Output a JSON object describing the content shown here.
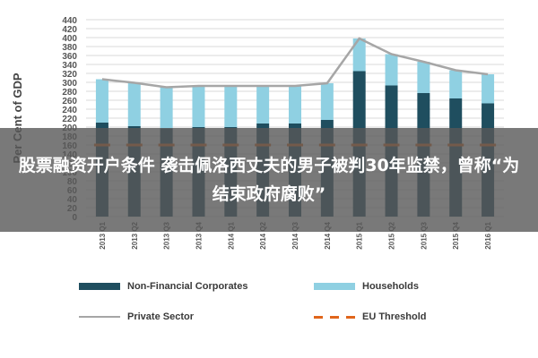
{
  "chart_data": {
    "type": "bar",
    "stacked": true,
    "categories": [
      "2013 Q1",
      "2013 Q2",
      "2013 Q3",
      "2013 Q4",
      "2014 Q1",
      "2014 Q2",
      "2014 Q3",
      "2014 Q4",
      "2015 Q1",
      "2015 Q2",
      "2015 Q3",
      "2015 Q4",
      "2016 Q1"
    ],
    "series": [
      {
        "name": "Non-Financial Corporates",
        "kind": "bar",
        "color": "#1f4e5f",
        "values": [
          210,
          202,
          197,
          200,
          200,
          208,
          208,
          216,
          325,
          293,
          276,
          264,
          253
        ]
      },
      {
        "name": "Households",
        "kind": "bar",
        "color": "#8fd0e2",
        "values": [
          97,
          97,
          92,
          92,
          92,
          84,
          84,
          82,
          73,
          70,
          70,
          63,
          65
        ]
      },
      {
        "name": "Private Sector",
        "kind": "line",
        "color": "#a6a6a6",
        "values": [
          307,
          299,
          289,
          292,
          292,
          292,
          292,
          298,
          398,
          363,
          346,
          327,
          318
        ]
      },
      {
        "name": "EU Threshold",
        "kind": "dashed-line",
        "color": "#e0651b",
        "values": [
          160,
          160,
          160,
          160,
          160,
          160,
          160,
          160,
          160,
          160,
          160,
          160,
          160
        ]
      }
    ],
    "ylabel": "Per Cent of GDP",
    "ylim": [
      0,
      440
    ],
    "yticks": [
      0,
      20,
      40,
      60,
      80,
      100,
      120,
      140,
      160,
      180,
      200,
      220,
      240,
      260,
      280,
      300,
      320,
      340,
      360,
      380,
      400,
      420,
      440
    ],
    "ytick_labels": [
      "0",
      "20",
      "40",
      "60",
      "80",
      "100",
      "120",
      "140",
      "160",
      "180",
      "200",
      "220",
      "240",
      "260",
      "280",
      "300",
      "320",
      "340",
      "360",
      "380",
      "400",
      "420",
      "440"
    ],
    "grid": true,
    "legend_position": "bottom"
  },
  "overlay": {
    "text": "股票融资开户条件 袭击佩洛西丈夫的男子被判30年监禁，曾称“为结束政府腐败”"
  }
}
